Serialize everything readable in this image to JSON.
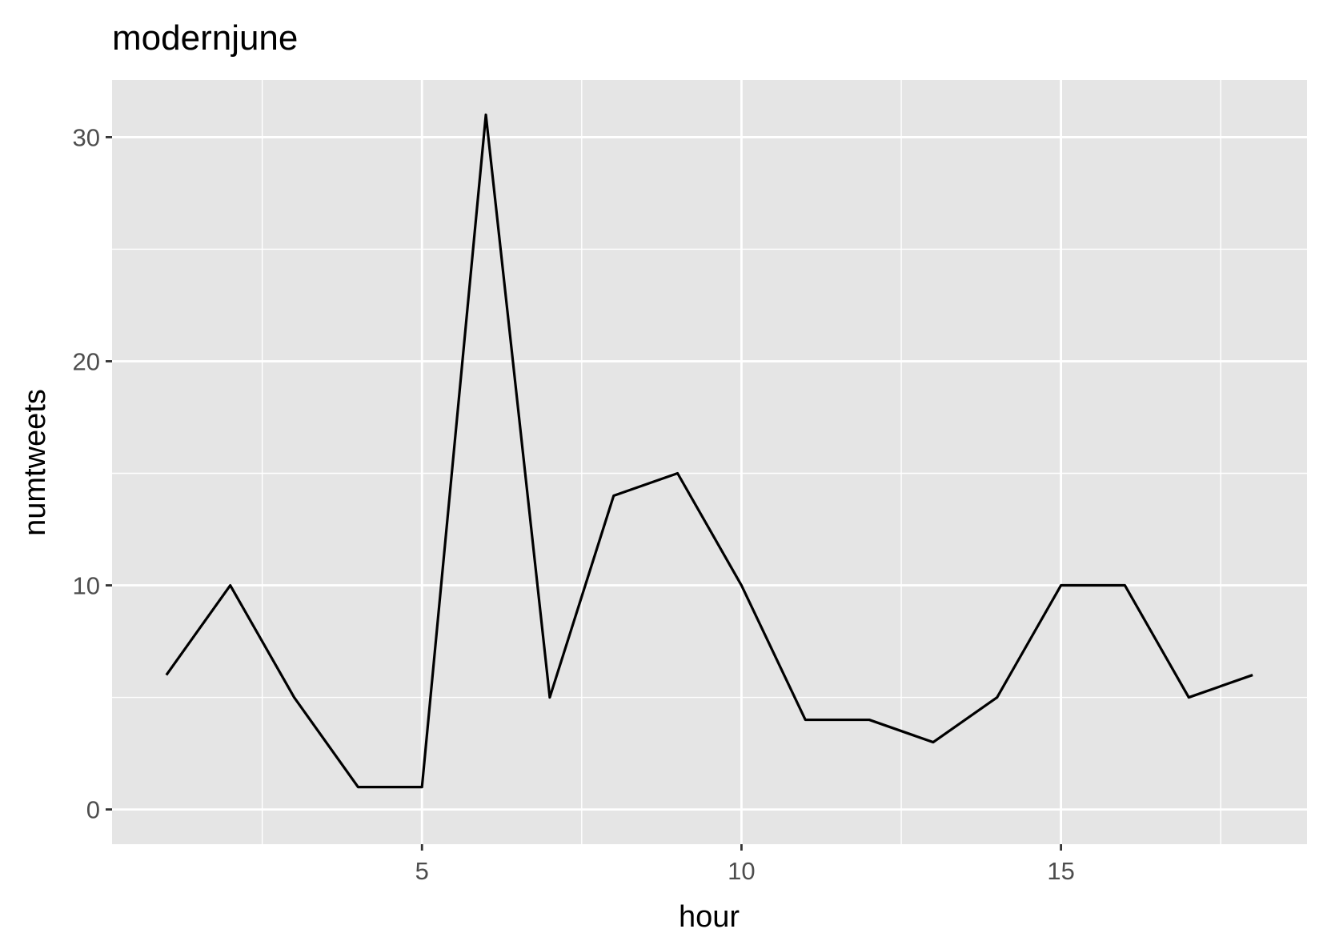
{
  "chart_data": {
    "type": "line",
    "title": "modernjune",
    "xlabel": "hour",
    "ylabel": "numtweets",
    "xlim": [
      0.15,
      18.85
    ],
    "ylim": [
      -1.55,
      32.55
    ],
    "x_ticks": [
      5,
      10,
      15
    ],
    "x_minor_ticks": [
      2.5,
      7.5,
      12.5,
      17.5
    ],
    "y_ticks": [
      0,
      10,
      20,
      30
    ],
    "y_minor_ticks": [
      5,
      15,
      25
    ],
    "grid": true,
    "colors": {
      "panel_background": "#e5e5e5",
      "grid": "#ffffff",
      "line": "#000000",
      "tick_label": "#4d4d4d"
    },
    "series": [
      {
        "x": [
          1,
          2,
          3,
          4,
          5,
          6,
          7,
          8,
          9,
          10,
          11,
          12,
          13,
          14,
          15,
          16,
          17,
          18
        ],
        "values": [
          6,
          10,
          5,
          1,
          1,
          31,
          5,
          14,
          15,
          10,
          4,
          4,
          3,
          5,
          10,
          10,
          5,
          6
        ]
      }
    ]
  }
}
